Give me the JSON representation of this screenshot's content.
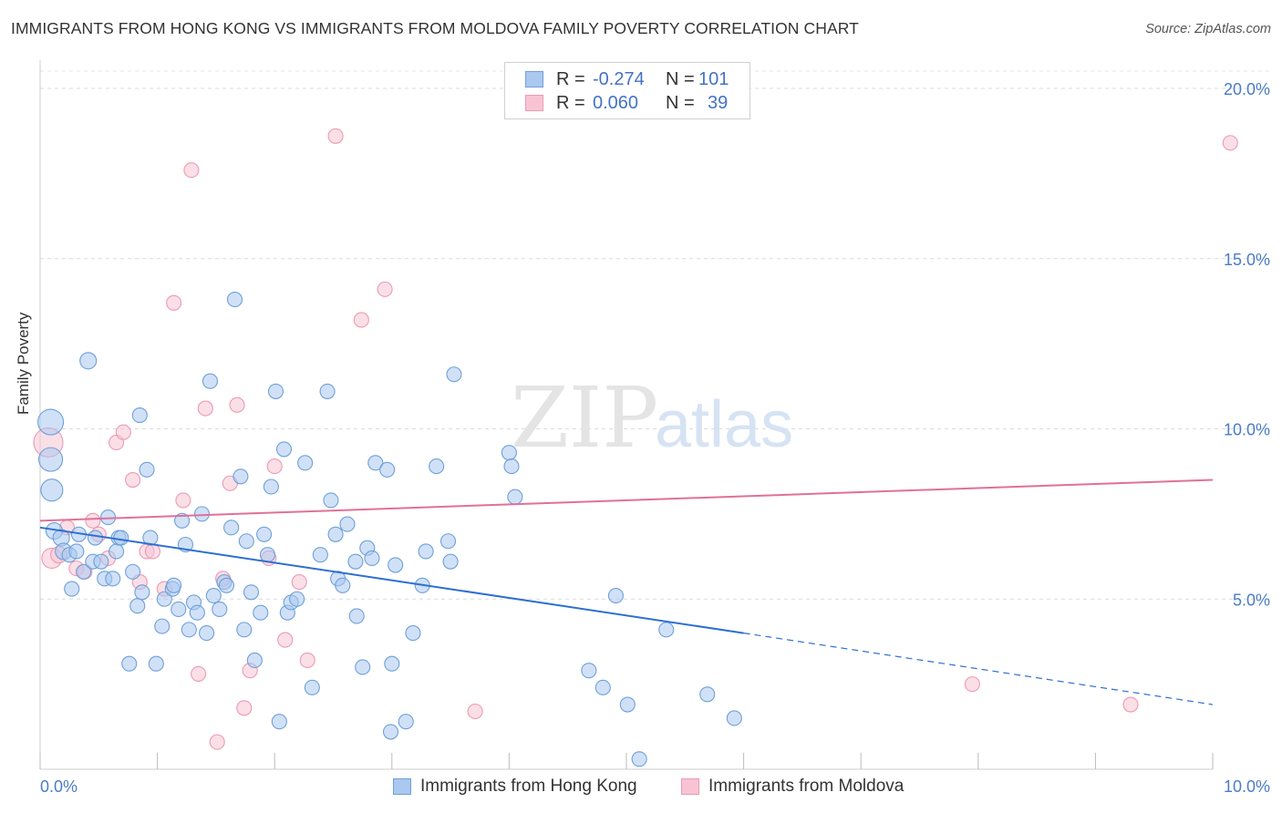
{
  "header": {
    "title": "IMMIGRANTS FROM HONG KONG VS IMMIGRANTS FROM MOLDOVA FAMILY POVERTY CORRELATION CHART",
    "source": "Source: ZipAtlas.com"
  },
  "watermark": {
    "zip": "ZIP",
    "atlas": "atlas"
  },
  "legend": {
    "rows": [
      {
        "r_label": "R =",
        "r_value": "-0.274",
        "n_label": "N =",
        "n_value": "101",
        "color": "#6fa8dc"
      },
      {
        "r_label": "R =",
        "r_value": "0.060",
        "n_label": "N =",
        "n_value": "39",
        "color": "#f4a6c0"
      }
    ]
  },
  "bottom_legend": {
    "series1": "Immigrants from Hong Kong",
    "series2": "Immigrants from Moldova"
  },
  "colors": {
    "hongkong_fill": "#aac8f0",
    "hongkong_stroke": "#6fa0d8",
    "hongkong_line": "#2e6fd0",
    "moldova_fill": "#f8c4d4",
    "moldova_stroke": "#ec9ab4",
    "moldova_line": "#e0709a",
    "axis_label": "#4a7cc8"
  },
  "chart_data": {
    "type": "scatter",
    "title": "IMMIGRANTS FROM HONG KONG VS IMMIGRANTS FROM MOLDOVA FAMILY POVERTY CORRELATION CHART",
    "xlabel": "",
    "ylabel": "Family Poverty",
    "xlim": [
      0,
      10
    ],
    "ylim": [
      0,
      20
    ],
    "x_ticks": [
      "0.0%",
      "10.0%"
    ],
    "y_ticks": [
      "5.0%",
      "10.0%",
      "15.0%",
      "20.0%"
    ],
    "grid": true,
    "legend_position": "top-center",
    "series": [
      {
        "name": "Immigrants from Hong Kong",
        "r": -0.274,
        "n": 101,
        "trend": {
          "x0": 0,
          "y0": 7.1,
          "x1": 6.0,
          "y1": 4.0,
          "dashed_to_x": 10.0,
          "dashed_to_y": 1.9
        },
        "points": [
          [
            0.09,
            10.2,
            14
          ],
          [
            0.09,
            9.1,
            13
          ],
          [
            0.1,
            8.2,
            12
          ],
          [
            0.12,
            7.0,
            9
          ],
          [
            0.18,
            6.8,
            9
          ],
          [
            0.2,
            6.4,
            9
          ],
          [
            0.25,
            6.3,
            8
          ],
          [
            0.27,
            5.3,
            8
          ],
          [
            0.33,
            6.9,
            8
          ],
          [
            0.37,
            5.8,
            8
          ],
          [
            0.41,
            12.0,
            9
          ],
          [
            0.45,
            6.1,
            8
          ],
          [
            0.47,
            6.8,
            8
          ],
          [
            0.52,
            6.1,
            8
          ],
          [
            0.55,
            5.6,
            8
          ],
          [
            0.58,
            7.4,
            8
          ],
          [
            0.62,
            5.6,
            8
          ],
          [
            0.65,
            6.4,
            8
          ],
          [
            0.67,
            6.8,
            8
          ],
          [
            0.69,
            6.8,
            8
          ],
          [
            0.76,
            3.1,
            8
          ],
          [
            0.79,
            5.8,
            8
          ],
          [
            0.83,
            4.8,
            8
          ],
          [
            0.85,
            10.4,
            8
          ],
          [
            0.87,
            5.2,
            8
          ],
          [
            0.91,
            8.8,
            8
          ],
          [
            0.94,
            6.8,
            8
          ],
          [
            0.99,
            3.1,
            8
          ],
          [
            1.04,
            4.2,
            8
          ],
          [
            1.06,
            5.0,
            8
          ],
          [
            1.13,
            5.3,
            8
          ],
          [
            1.14,
            5.4,
            8
          ],
          [
            1.18,
            4.7,
            8
          ],
          [
            1.21,
            7.3,
            8
          ],
          [
            1.24,
            6.6,
            8
          ],
          [
            1.27,
            4.1,
            8
          ],
          [
            1.31,
            4.9,
            8
          ],
          [
            1.34,
            4.6,
            8
          ],
          [
            1.38,
            7.5,
            8
          ],
          [
            1.42,
            4.0,
            8
          ],
          [
            1.45,
            11.4,
            8
          ],
          [
            1.48,
            5.1,
            8
          ],
          [
            1.53,
            4.7,
            8
          ],
          [
            1.57,
            5.5,
            8
          ],
          [
            1.59,
            5.4,
            8
          ],
          [
            1.63,
            7.1,
            8
          ],
          [
            1.66,
            13.8,
            8
          ],
          [
            1.71,
            8.6,
            8
          ],
          [
            1.74,
            4.1,
            8
          ],
          [
            1.76,
            6.7,
            8
          ],
          [
            1.8,
            5.2,
            8
          ],
          [
            1.83,
            3.2,
            8
          ],
          [
            1.88,
            4.6,
            8
          ],
          [
            1.91,
            6.9,
            8
          ],
          [
            1.94,
            6.3,
            8
          ],
          [
            1.97,
            8.3,
            8
          ],
          [
            2.01,
            11.1,
            8
          ],
          [
            2.04,
            1.4,
            8
          ],
          [
            2.08,
            9.4,
            8
          ],
          [
            2.11,
            4.6,
            8
          ],
          [
            2.14,
            4.9,
            8
          ],
          [
            2.19,
            5.0,
            8
          ],
          [
            2.26,
            9.0,
            8
          ],
          [
            2.32,
            2.4,
            8
          ],
          [
            2.39,
            6.3,
            8
          ],
          [
            2.45,
            11.1,
            8
          ],
          [
            2.48,
            7.9,
            8
          ],
          [
            2.52,
            6.9,
            8
          ],
          [
            2.54,
            5.6,
            8
          ],
          [
            2.58,
            5.4,
            8
          ],
          [
            2.62,
            7.2,
            8
          ],
          [
            2.69,
            6.1,
            8
          ],
          [
            2.7,
            4.5,
            8
          ],
          [
            2.75,
            3.0,
            8
          ],
          [
            2.79,
            6.5,
            8
          ],
          [
            2.83,
            6.2,
            8
          ],
          [
            2.86,
            9.0,
            8
          ],
          [
            2.96,
            8.8,
            8
          ],
          [
            2.99,
            1.1,
            8
          ],
          [
            3.03,
            6.0,
            8
          ],
          [
            3.12,
            1.4,
            8
          ],
          [
            3.18,
            4.0,
            8
          ],
          [
            3.26,
            5.4,
            8
          ],
          [
            3.29,
            6.4,
            8
          ],
          [
            3.38,
            8.9,
            8
          ],
          [
            3.48,
            6.7,
            8
          ],
          [
            3.5,
            6.1,
            8
          ],
          [
            3.53,
            11.6,
            8
          ],
          [
            4.0,
            9.3,
            8
          ],
          [
            4.02,
            8.9,
            8
          ],
          [
            4.05,
            8.0,
            8
          ],
          [
            4.68,
            2.9,
            8
          ],
          [
            4.8,
            2.4,
            8
          ],
          [
            4.91,
            5.1,
            8
          ],
          [
            5.01,
            1.9,
            8
          ],
          [
            5.11,
            0.3,
            8
          ],
          [
            5.34,
            4.1,
            8
          ],
          [
            5.69,
            2.2,
            8
          ],
          [
            5.92,
            1.5,
            8
          ],
          [
            0.31,
            6.4,
            8
          ],
          [
            3.0,
            3.1,
            8
          ]
        ]
      },
      {
        "name": "Immigrants from Moldova",
        "r": 0.06,
        "n": 39,
        "trend": {
          "x0": 0,
          "y0": 7.3,
          "x1": 10.0,
          "y1": 8.5
        },
        "points": [
          [
            0.07,
            9.6,
            16
          ],
          [
            0.1,
            6.2,
            11
          ],
          [
            0.16,
            6.3,
            9
          ],
          [
            0.23,
            7.1,
            8
          ],
          [
            0.31,
            5.9,
            8
          ],
          [
            0.38,
            5.8,
            8
          ],
          [
            0.45,
            7.3,
            8
          ],
          [
            0.5,
            6.9,
            8
          ],
          [
            0.58,
            6.2,
            8
          ],
          [
            0.65,
            9.6,
            8
          ],
          [
            0.71,
            9.9,
            8
          ],
          [
            0.79,
            8.5,
            8
          ],
          [
            0.85,
            5.5,
            8
          ],
          [
            0.91,
            6.4,
            8
          ],
          [
            0.96,
            6.4,
            8
          ],
          [
            1.06,
            5.3,
            8
          ],
          [
            1.14,
            13.7,
            8
          ],
          [
            1.22,
            7.9,
            8
          ],
          [
            1.29,
            17.6,
            8
          ],
          [
            1.35,
            2.8,
            8
          ],
          [
            1.41,
            10.6,
            8
          ],
          [
            1.51,
            0.8,
            8
          ],
          [
            1.56,
            5.6,
            8
          ],
          [
            1.62,
            8.4,
            8
          ],
          [
            1.68,
            10.7,
            8
          ],
          [
            1.74,
            1.8,
            8
          ],
          [
            1.79,
            2.9,
            8
          ],
          [
            1.95,
            6.2,
            8
          ],
          [
            2.0,
            8.9,
            8
          ],
          [
            2.09,
            3.8,
            8
          ],
          [
            2.21,
            5.5,
            8
          ],
          [
            2.28,
            3.2,
            8
          ],
          [
            2.52,
            18.6,
            8
          ],
          [
            2.74,
            13.2,
            8
          ],
          [
            2.94,
            14.1,
            8
          ],
          [
            3.71,
            1.7,
            8
          ],
          [
            7.95,
            2.5,
            8
          ],
          [
            9.3,
            1.9,
            8
          ],
          [
            10.15,
            18.4,
            8
          ]
        ]
      }
    ]
  }
}
